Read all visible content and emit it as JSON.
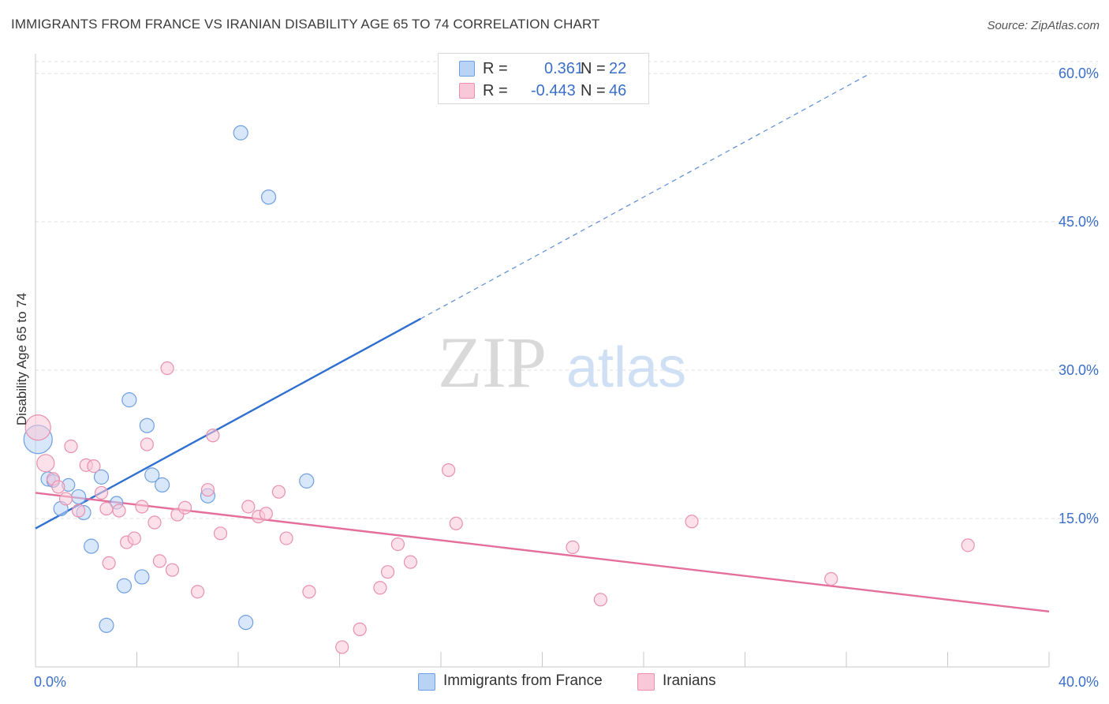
{
  "title": "IMMIGRANTS FROM FRANCE VS IRANIAN DISABILITY AGE 65 TO 74 CORRELATION CHART",
  "source": "Source: ZipAtlas.com",
  "watermark": {
    "zip": "ZIP",
    "atlas": "atlas"
  },
  "legend": {
    "r_label": "R =",
    "n_label": "N =",
    "rows": [
      {
        "r": "0.361",
        "n": "22",
        "color": "#b9d3f5",
        "border": "#6f9fe0"
      },
      {
        "r": "-0.443",
        "n": "46",
        "color": "#f9c8d8",
        "border": "#e890ad"
      }
    ]
  },
  "bottom_legend": [
    "Immigrants from France",
    "Iranians"
  ],
  "chart_data": {
    "type": "scatter",
    "title": "IMMIGRANTS FROM FRANCE VS IRANIAN DISABILITY AGE 65 TO 74 CORRELATION CHART",
    "xlabel": "",
    "ylabel": "Disability Age 65 to 74",
    "xlim": [
      0,
      40
    ],
    "ylim": [
      0,
      62
    ],
    "x_tick_labels": [
      "0.0%",
      "40.0%"
    ],
    "y_ticks": [
      15,
      30,
      45,
      60
    ],
    "y_tick_labels": [
      "15.0%",
      "30.0%",
      "45.0%",
      "60.0%"
    ],
    "grid": true,
    "series": [
      {
        "name": "Immigrants from France",
        "color": "#6f9fe0",
        "fill": "#b9d3f5",
        "line_color": "#2f6fd0",
        "trend": {
          "x0": 0,
          "y0": 14.0,
          "x1": 15.2,
          "y1": 35.2,
          "dash_x1": 32.8,
          "dash_y1": 59.8
        },
        "points": [
          [
            0.1,
            23.0,
            18
          ],
          [
            0.5,
            19.0,
            9
          ],
          [
            0.7,
            18.8,
            8
          ],
          [
            1.0,
            16.0,
            9
          ],
          [
            1.3,
            18.4,
            8
          ],
          [
            1.7,
            17.2,
            9
          ],
          [
            1.9,
            15.6,
            9
          ],
          [
            2.2,
            12.2,
            9
          ],
          [
            2.6,
            19.2,
            9
          ],
          [
            2.8,
            4.2,
            9
          ],
          [
            3.2,
            16.6,
            8
          ],
          [
            3.5,
            8.2,
            9
          ],
          [
            3.7,
            27.0,
            9
          ],
          [
            4.2,
            9.1,
            9
          ],
          [
            4.4,
            24.4,
            9
          ],
          [
            4.6,
            19.4,
            9
          ],
          [
            5.0,
            18.4,
            9
          ],
          [
            6.8,
            17.3,
            9
          ],
          [
            8.1,
            54.0,
            9
          ],
          [
            8.3,
            4.5,
            9
          ],
          [
            9.2,
            47.5,
            9
          ],
          [
            10.7,
            18.8,
            9
          ]
        ]
      },
      {
        "name": "Iranians",
        "color": "#e890ad",
        "fill": "#f9c8d8",
        "line_color": "#e36f9a",
        "trend": {
          "x0": 0,
          "y0": 17.6,
          "x1": 40,
          "y1": 5.6
        },
        "points": [
          [
            0.1,
            24.2,
            16
          ],
          [
            0.4,
            20.6,
            11
          ],
          [
            0.7,
            19.0,
            8
          ],
          [
            0.9,
            18.2,
            8
          ],
          [
            1.2,
            17.0,
            8
          ],
          [
            1.4,
            22.3,
            8
          ],
          [
            1.7,
            15.8,
            8
          ],
          [
            2.0,
            20.4,
            8
          ],
          [
            2.3,
            20.3,
            8
          ],
          [
            2.6,
            17.6,
            8
          ],
          [
            2.8,
            16.0,
            8
          ],
          [
            2.9,
            10.5,
            8
          ],
          [
            3.3,
            15.8,
            8
          ],
          [
            3.6,
            12.6,
            8
          ],
          [
            3.9,
            13.0,
            8
          ],
          [
            4.2,
            16.2,
            8
          ],
          [
            4.4,
            22.5,
            8
          ],
          [
            4.7,
            14.6,
            8
          ],
          [
            4.9,
            10.7,
            8
          ],
          [
            5.2,
            30.2,
            8
          ],
          [
            5.4,
            9.8,
            8
          ],
          [
            5.6,
            15.4,
            8
          ],
          [
            5.9,
            16.1,
            8
          ],
          [
            6.4,
            7.6,
            8
          ],
          [
            6.8,
            17.9,
            8
          ],
          [
            7.0,
            23.4,
            8
          ],
          [
            7.3,
            13.5,
            8
          ],
          [
            8.4,
            16.2,
            8
          ],
          [
            8.8,
            15.2,
            8
          ],
          [
            9.1,
            15.5,
            8
          ],
          [
            9.6,
            17.7,
            8
          ],
          [
            9.9,
            13.0,
            8
          ],
          [
            10.8,
            7.6,
            8
          ],
          [
            12.1,
            2.0,
            8
          ],
          [
            12.8,
            3.8,
            8
          ],
          [
            13.6,
            8.0,
            8
          ],
          [
            13.9,
            9.6,
            8
          ],
          [
            14.3,
            12.4,
            8
          ],
          [
            14.8,
            10.6,
            8
          ],
          [
            16.3,
            19.9,
            8
          ],
          [
            16.6,
            14.5,
            8
          ],
          [
            21.2,
            12.1,
            8
          ],
          [
            22.3,
            6.8,
            8
          ],
          [
            25.9,
            14.7,
            8
          ],
          [
            31.4,
            8.9,
            8
          ],
          [
            36.8,
            12.3,
            8
          ]
        ]
      }
    ]
  }
}
